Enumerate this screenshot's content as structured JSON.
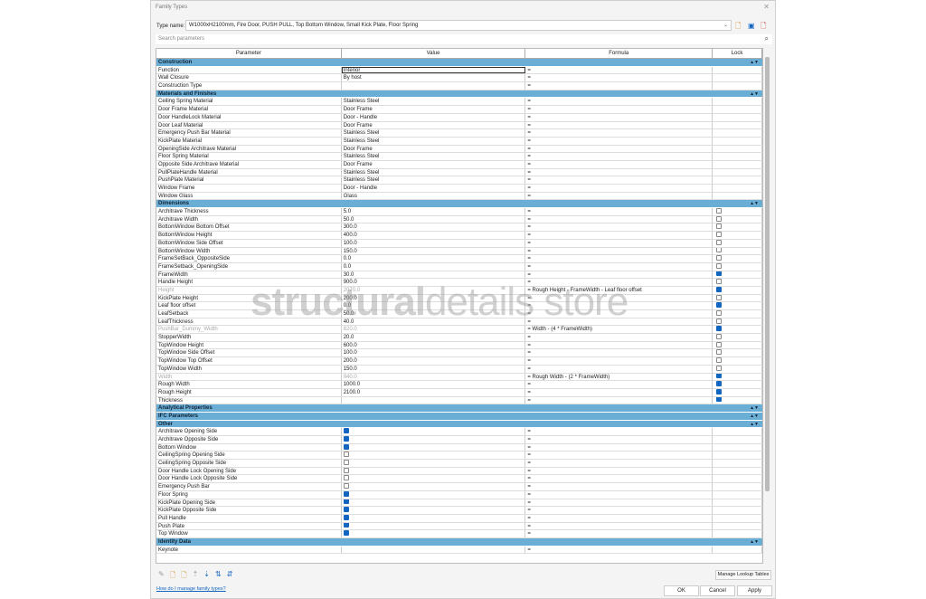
{
  "window": {
    "title": "Family Types",
    "close": "✕"
  },
  "type_name": {
    "label": "Type name:",
    "value": "W1000xH2100mm, Fire Door, PUSH PULL, Top Bottom Window, Small Kick Plate, Floor Spring"
  },
  "search": {
    "placeholder": "Search parameters"
  },
  "columns": {
    "parameter": "Parameter",
    "value": "Value",
    "formula": "Formula",
    "lock": "Lock"
  },
  "groups": [
    {
      "name": "Construction",
      "rows": [
        {
          "p": "Function",
          "v": "Interior",
          "f": "=",
          "editing": true
        },
        {
          "p": "Wall Closure",
          "v": "By host",
          "f": "="
        },
        {
          "p": "Construction Type",
          "v": "",
          "f": "="
        }
      ]
    },
    {
      "name": "Materials and Finishes",
      "rows": [
        {
          "p": "Ceiling Spring Material",
          "v": "Stainless Steel",
          "f": "="
        },
        {
          "p": "Door Frame Material",
          "v": "Door Frame",
          "f": "="
        },
        {
          "p": "Door HandleLock Material",
          "v": "Door - Handle",
          "f": "="
        },
        {
          "p": "Door Leaf Material",
          "v": "Door Frame",
          "f": "="
        },
        {
          "p": "Emergency Push Bar Material",
          "v": "Stainless Steel",
          "f": "="
        },
        {
          "p": "KickPlate Material",
          "v": "Stainless Steel",
          "f": "="
        },
        {
          "p": "OpeningSide Architrave Material",
          "v": "Door Frame",
          "f": "="
        },
        {
          "p": "Floor Spring Material",
          "v": "Stainless Steel",
          "f": "="
        },
        {
          "p": "Opposite Side Architrave Material",
          "v": "Door Frame",
          "f": "="
        },
        {
          "p": "PullPlateHandle Material",
          "v": "Stainless Steel",
          "f": "="
        },
        {
          "p": "PushPlate Material",
          "v": "Stainless Steel",
          "f": "="
        },
        {
          "p": "Window Frame",
          "v": "Door - Handle",
          "f": "="
        },
        {
          "p": "Window Glass",
          "v": "Glass",
          "f": "="
        }
      ]
    },
    {
      "name": "Dimensions",
      "rows": [
        {
          "p": "Architrave Thickness",
          "v": "5.0",
          "f": "=",
          "lock": false
        },
        {
          "p": "Architrave Width",
          "v": "50.0",
          "f": "=",
          "lock": false
        },
        {
          "p": "BottomWindow Bottom Offset",
          "v": "300.0",
          "f": "=",
          "lock": false
        },
        {
          "p": "BottomWindow Height",
          "v": "400.0",
          "f": "=",
          "lock": false
        },
        {
          "p": "BottomWindow Side Offset",
          "v": "100.0",
          "f": "=",
          "lock": false
        },
        {
          "p": "BottomWindow Width",
          "v": "150.0",
          "f": "=",
          "lock": false
        },
        {
          "p": "FrameSetBack_OppositeSide",
          "v": "0.0",
          "f": "=",
          "lock": false
        },
        {
          "p": "FrameSetback_OpeningSide",
          "v": "0.0",
          "f": "=",
          "lock": false
        },
        {
          "p": "FrameWidth",
          "v": "30.0",
          "f": "=",
          "lock": true
        },
        {
          "p": "Handle Height",
          "v": "900.0",
          "f": "=",
          "lock": false
        },
        {
          "p": "Height",
          "v": "2070.0",
          "f": "= Rough Height - FrameWidth - Leaf floor offset",
          "lock": true,
          "grey": true
        },
        {
          "p": "KickPlate Height",
          "v": "200.0",
          "f": "=",
          "lock": false
        },
        {
          "p": "Leaf floor offset",
          "v": "0.0",
          "f": "=",
          "lock": true
        },
        {
          "p": "LeafSetback",
          "v": "50.0",
          "f": "=",
          "lock": false
        },
        {
          "p": "LeafThickness",
          "v": "40.0",
          "f": "=",
          "lock": false
        },
        {
          "p": "PushBar_Dummy_Width",
          "v": "820.0",
          "f": "= Width - (4 * FrameWidth)",
          "lock": true,
          "grey": true
        },
        {
          "p": "StopperWidth",
          "v": "20.0",
          "f": "=",
          "lock": false
        },
        {
          "p": "TopWindow Height",
          "v": "600.0",
          "f": "=",
          "lock": false
        },
        {
          "p": "TopWindow Side Offset",
          "v": "100.0",
          "f": "=",
          "lock": false
        },
        {
          "p": "TopWindow Top Offset",
          "v": "200.0",
          "f": "=",
          "lock": false
        },
        {
          "p": "TopWindow Width",
          "v": "150.0",
          "f": "=",
          "lock": false
        },
        {
          "p": "Width",
          "v": "940.0",
          "f": "= Rough Width - (2 * FrameWidth)",
          "lock": true,
          "grey": true
        },
        {
          "p": "Rough Width",
          "v": "1000.0",
          "f": "=",
          "lock": true
        },
        {
          "p": "Rough Height",
          "v": "2100.0",
          "f": "=",
          "lock": true
        },
        {
          "p": "Thickness",
          "v": "",
          "f": "=",
          "lock": true
        }
      ]
    },
    {
      "name": "Analytical Properties",
      "rows": []
    },
    {
      "name": "IFC Parameters",
      "rows": []
    },
    {
      "name": "Other",
      "rows": [
        {
          "p": "Architrave Opening Side",
          "check": true,
          "f": "="
        },
        {
          "p": "Architrave Opposite Side",
          "check": true,
          "f": "="
        },
        {
          "p": "Bottom Window",
          "check": true,
          "f": "="
        },
        {
          "p": "CeilingSpring Opening Side",
          "check": false,
          "f": "="
        },
        {
          "p": "CeilingSpring Opposite Side",
          "check": false,
          "f": "="
        },
        {
          "p": "Door Handle Lock Opening Side",
          "check": false,
          "f": "="
        },
        {
          "p": "Door Handle Lock Opposite Side",
          "check": false,
          "f": "="
        },
        {
          "p": "Emergency Push Bar",
          "check": false,
          "f": "="
        },
        {
          "p": "Floor Spring",
          "check": true,
          "f": "="
        },
        {
          "p": "KickPlate Opening Side",
          "check": true,
          "f": "="
        },
        {
          "p": "KickPlate Opposite Side",
          "check": true,
          "f": "="
        },
        {
          "p": "Pull Handle",
          "check": true,
          "f": "="
        },
        {
          "p": "Push Plate",
          "check": true,
          "f": "="
        },
        {
          "p": "Top Window",
          "check": true,
          "f": "="
        }
      ]
    },
    {
      "name": "Identity Data",
      "rows": [
        {
          "p": "Keynote",
          "v": "",
          "f": "="
        }
      ]
    }
  ],
  "watermark": {
    "bold": "structural",
    "light": "details store"
  },
  "toolbar_icons": [
    "edit-pencil-icon",
    "new-parameter-icon",
    "delete-parameter-icon",
    "move-up-icon",
    "move-down-icon",
    "sort-ascending-icon",
    "sort-descending-icon"
  ],
  "buttons": {
    "manage": "Manage Lookup Tables",
    "help": "How do I manage family types?",
    "ok": "OK",
    "cancel": "Cancel",
    "apply": "Apply"
  },
  "colors": {
    "group_header": "#6aaed6",
    "checkbox_on": "#1366c0"
  }
}
